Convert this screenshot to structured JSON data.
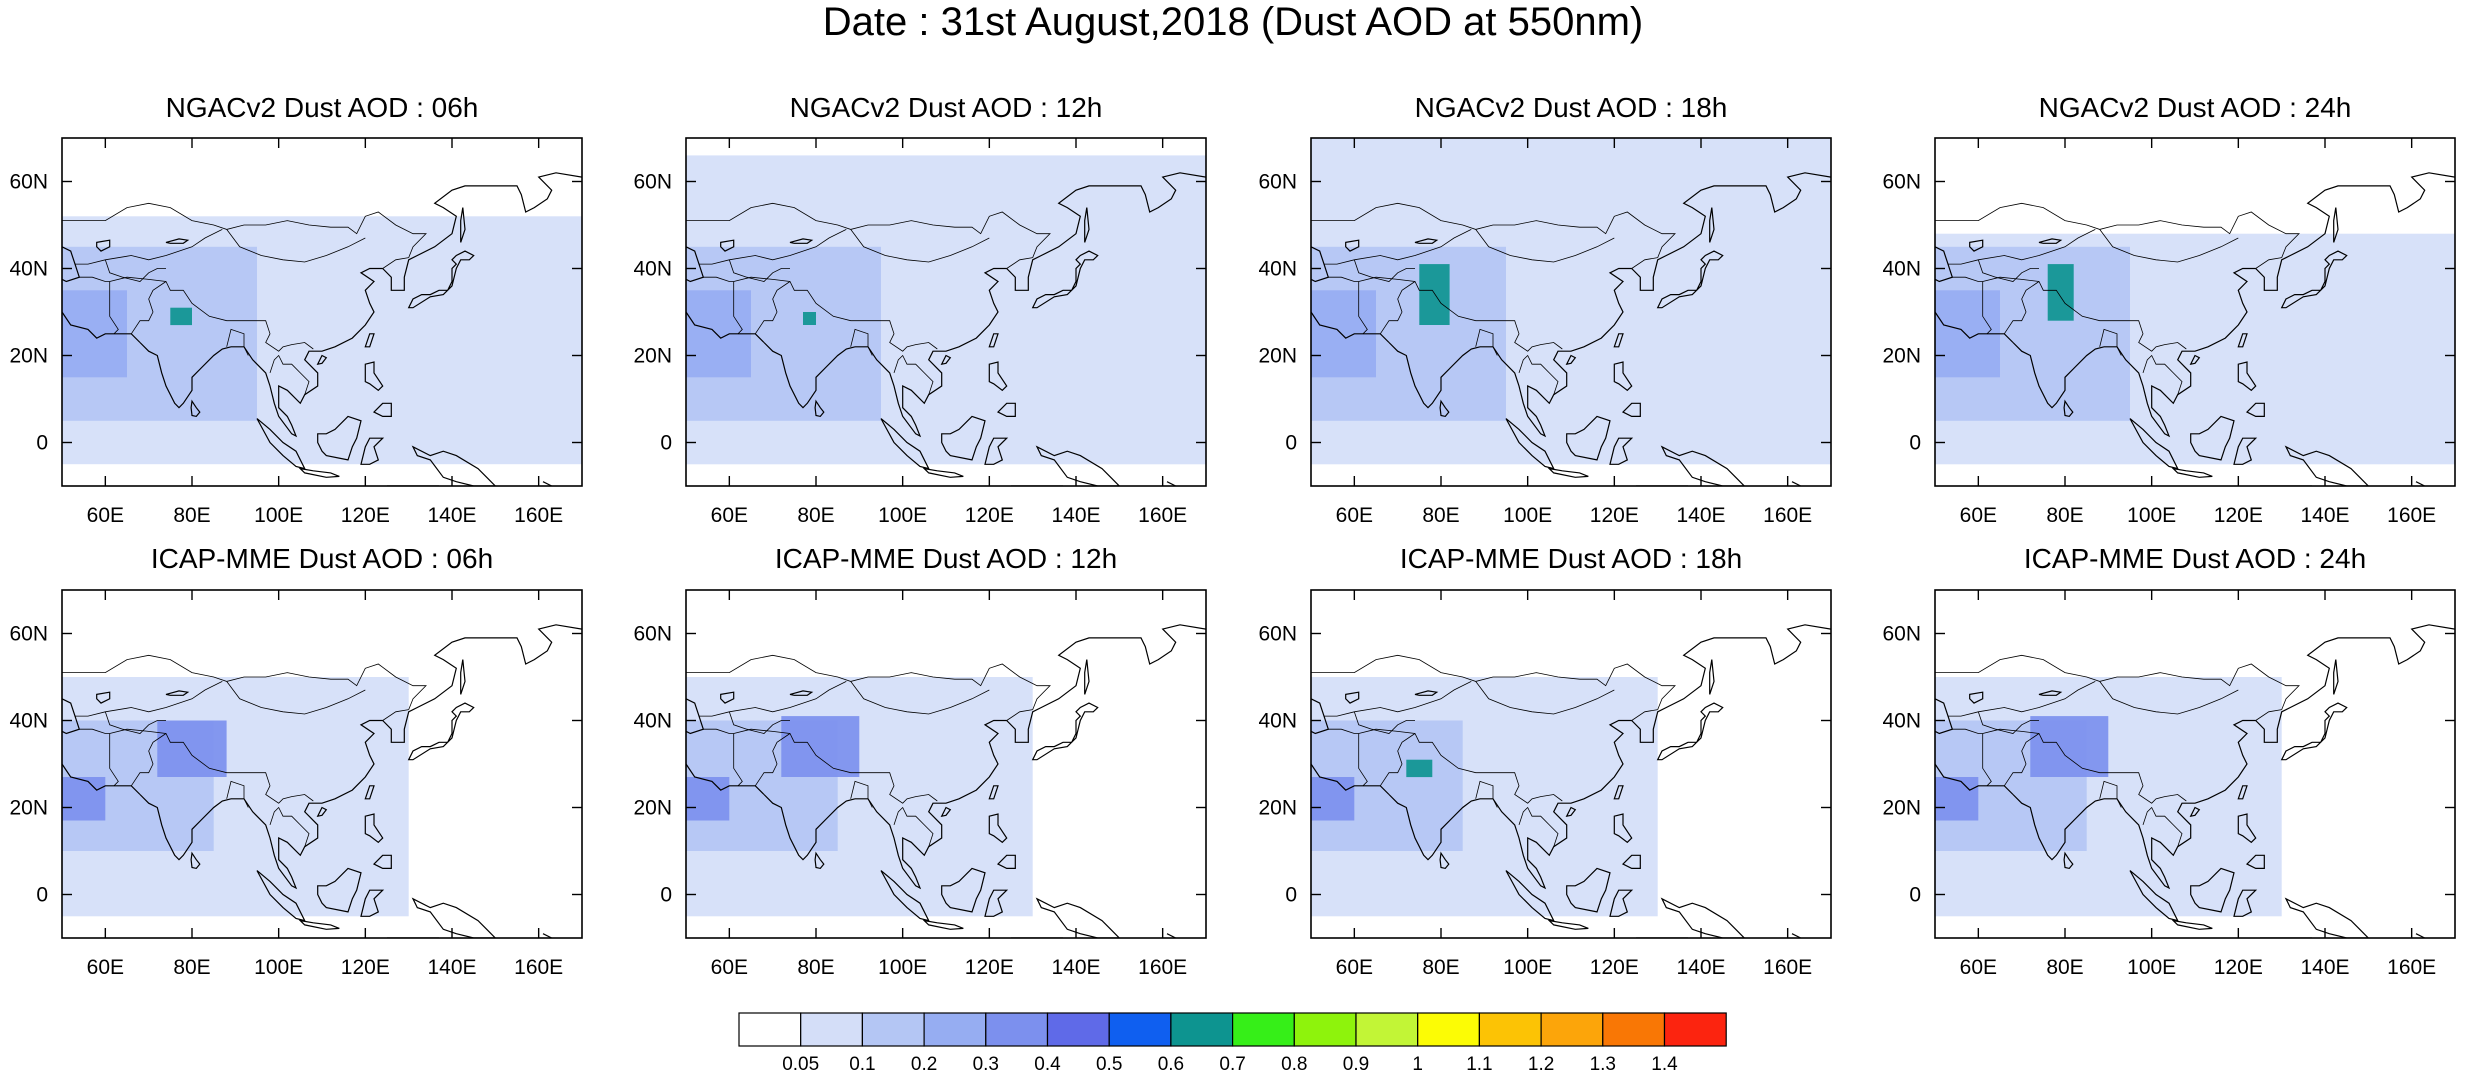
{
  "figure": {
    "title": "Date : 31st August,2018 (Dust AOD at 550nm)"
  },
  "map_extent": {
    "lon_range": [
      50,
      170
    ],
    "lat_range": [
      -10,
      70
    ]
  },
  "axes": {
    "lon_ticks": [
      {
        "value": 60,
        "label": "60E"
      },
      {
        "value": 80,
        "label": "80E"
      },
      {
        "value": 100,
        "label": "100E"
      },
      {
        "value": 120,
        "label": "120E"
      },
      {
        "value": 140,
        "label": "140E"
      },
      {
        "value": 160,
        "label": "160E"
      }
    ],
    "lat_ticks": [
      {
        "value": 60,
        "label": "60N"
      },
      {
        "value": 40,
        "label": "40N"
      },
      {
        "value": 20,
        "label": "20N"
      },
      {
        "value": 0,
        "label": "0"
      }
    ]
  },
  "panels": [
    {
      "title": "NGACv2 Dust AOD : 06h",
      "model": "ngac",
      "hour": 6
    },
    {
      "title": "NGACv2 Dust AOD : 12h",
      "model": "ngac",
      "hour": 12
    },
    {
      "title": "NGACv2 Dust AOD : 18h",
      "model": "ngac",
      "hour": 18
    },
    {
      "title": "NGACv2 Dust AOD : 24h",
      "model": "ngac",
      "hour": 24
    },
    {
      "title": "ICAP-MME Dust AOD : 06h",
      "model": "icap",
      "hour": 6
    },
    {
      "title": "ICAP-MME Dust AOD : 12h",
      "model": "icap",
      "hour": 12
    },
    {
      "title": "ICAP-MME Dust AOD : 18h",
      "model": "icap",
      "hour": 18
    },
    {
      "title": "ICAP-MME Dust AOD : 24h",
      "model": "icap",
      "hour": 24
    }
  ],
  "colorbar": {
    "labels": [
      "0.05",
      "0.1",
      "0.2",
      "0.3",
      "0.4",
      "0.5",
      "0.6",
      "0.7",
      "0.8",
      "0.9",
      "1",
      "1.1",
      "1.2",
      "1.3",
      "1.4"
    ],
    "colors": [
      "#ffffff",
      "#d4def8",
      "#b4c6f4",
      "#96adf2",
      "#7c90ee",
      "#5f6ae8",
      "#0f5ff0",
      "#0d9490",
      "#36ef18",
      "#8ef30c",
      "#c2f536",
      "#fcfc05",
      "#fcc305",
      "#fca50a",
      "#f97705",
      "#fc240f"
    ]
  },
  "chart_data": {
    "type": "heatmap",
    "title": "Date : 31st August,2018 (Dust AOD at 550nm)",
    "variable": "Dust AOD at 550nm",
    "lon_range": [
      50,
      170
    ],
    "lat_range": [
      -10,
      70
    ],
    "levels": [
      0.05,
      0.1,
      0.2,
      0.3,
      0.4,
      0.5,
      0.6,
      0.7,
      0.8,
      0.9,
      1,
      1.1,
      1.2,
      1.3,
      1.4
    ],
    "panels": [
      {
        "title": "NGACv2 Dust AOD : 06h",
        "regions": [
          {
            "lon": [
              50,
              170
            ],
            "lat": [
              -5,
              52
            ],
            "aod_range": [
              0.05,
              0.1
            ]
          },
          {
            "lon": [
              50,
              95
            ],
            "lat": [
              5,
              45
            ],
            "aod_range": [
              0.1,
              0.2
            ]
          },
          {
            "lon": [
              50,
              65
            ],
            "lat": [
              15,
              35
            ],
            "aod_range": [
              0.2,
              0.3
            ]
          },
          {
            "lon": [
              75,
              80
            ],
            "lat": [
              27,
              31
            ],
            "aod_range": [
              0.6,
              0.7
            ]
          }
        ]
      },
      {
        "title": "NGACv2 Dust AOD : 12h",
        "regions": [
          {
            "lon": [
              50,
              170
            ],
            "lat": [
              -5,
              66
            ],
            "aod_range": [
              0.05,
              0.1
            ]
          },
          {
            "lon": [
              50,
              95
            ],
            "lat": [
              5,
              45
            ],
            "aod_range": [
              0.1,
              0.2
            ]
          },
          {
            "lon": [
              50,
              65
            ],
            "lat": [
              15,
              35
            ],
            "aod_range": [
              0.2,
              0.3
            ]
          },
          {
            "lon": [
              77,
              80
            ],
            "lat": [
              27,
              30
            ],
            "aod_range": [
              0.6,
              0.7
            ]
          }
        ]
      },
      {
        "title": "NGACv2 Dust AOD : 18h",
        "regions": [
          {
            "lon": [
              50,
              170
            ],
            "lat": [
              -5,
              70
            ],
            "aod_range": [
              0.05,
              0.1
            ]
          },
          {
            "lon": [
              50,
              95
            ],
            "lat": [
              5,
              45
            ],
            "aod_range": [
              0.1,
              0.2
            ]
          },
          {
            "lon": [
              50,
              65
            ],
            "lat": [
              15,
              35
            ],
            "aod_range": [
              0.2,
              0.3
            ]
          },
          {
            "lon": [
              75,
              82
            ],
            "lat": [
              27,
              41
            ],
            "aod_range": [
              0.6,
              0.7
            ]
          }
        ]
      },
      {
        "title": "NGACv2 Dust AOD : 24h",
        "regions": [
          {
            "lon": [
              50,
              170
            ],
            "lat": [
              -5,
              48
            ],
            "aod_range": [
              0.05,
              0.1
            ]
          },
          {
            "lon": [
              50,
              95
            ],
            "lat": [
              5,
              45
            ],
            "aod_range": [
              0.1,
              0.2
            ]
          },
          {
            "lon": [
              50,
              65
            ],
            "lat": [
              15,
              35
            ],
            "aod_range": [
              0.2,
              0.3
            ]
          },
          {
            "lon": [
              76,
              82
            ],
            "lat": [
              28,
              41
            ],
            "aod_range": [
              0.6,
              0.7
            ]
          }
        ]
      },
      {
        "title": "ICAP-MME Dust AOD : 06h",
        "regions": [
          {
            "lon": [
              50,
              130
            ],
            "lat": [
              -5,
              50
            ],
            "aod_range": [
              0.05,
              0.1
            ]
          },
          {
            "lon": [
              50,
              85
            ],
            "lat": [
              10,
              40
            ],
            "aod_range": [
              0.1,
              0.3
            ]
          },
          {
            "lon": [
              50,
              60
            ],
            "lat": [
              17,
              27
            ],
            "aod_range": [
              0.3,
              0.4
            ]
          },
          {
            "lon": [
              72,
              88
            ],
            "lat": [
              27,
              40
            ],
            "aod_range": [
              0.3,
              0.4
            ]
          }
        ]
      },
      {
        "title": "ICAP-MME Dust AOD : 12h",
        "regions": [
          {
            "lon": [
              50,
              130
            ],
            "lat": [
              -5,
              50
            ],
            "aod_range": [
              0.05,
              0.1
            ]
          },
          {
            "lon": [
              50,
              85
            ],
            "lat": [
              10,
              40
            ],
            "aod_range": [
              0.1,
              0.3
            ]
          },
          {
            "lon": [
              50,
              60
            ],
            "lat": [
              17,
              27
            ],
            "aod_range": [
              0.3,
              0.4
            ]
          },
          {
            "lon": [
              72,
              90
            ],
            "lat": [
              27,
              41
            ],
            "aod_range": [
              0.3,
              0.5
            ]
          }
        ]
      },
      {
        "title": "ICAP-MME Dust AOD : 18h",
        "regions": [
          {
            "lon": [
              50,
              130
            ],
            "lat": [
              -5,
              50
            ],
            "aod_range": [
              0.05,
              0.1
            ]
          },
          {
            "lon": [
              50,
              85
            ],
            "lat": [
              10,
              40
            ],
            "aod_range": [
              0.1,
              0.3
            ]
          },
          {
            "lon": [
              50,
              60
            ],
            "lat": [
              17,
              27
            ],
            "aod_range": [
              0.3,
              0.4
            ]
          },
          {
            "lon": [
              72,
              78
            ],
            "lat": [
              27,
              31
            ],
            "aod_range": [
              0.6,
              0.7
            ]
          }
        ]
      },
      {
        "title": "ICAP-MME Dust AOD : 24h",
        "regions": [
          {
            "lon": [
              50,
              130
            ],
            "lat": [
              -5,
              50
            ],
            "aod_range": [
              0.05,
              0.1
            ]
          },
          {
            "lon": [
              50,
              85
            ],
            "lat": [
              10,
              40
            ],
            "aod_range": [
              0.1,
              0.3
            ]
          },
          {
            "lon": [
              50,
              60
            ],
            "lat": [
              17,
              27
            ],
            "aod_range": [
              0.3,
              0.4
            ]
          },
          {
            "lon": [
              72,
              90
            ],
            "lat": [
              27,
              41
            ],
            "aod_range": [
              0.3,
              0.4
            ]
          }
        ]
      }
    ]
  }
}
